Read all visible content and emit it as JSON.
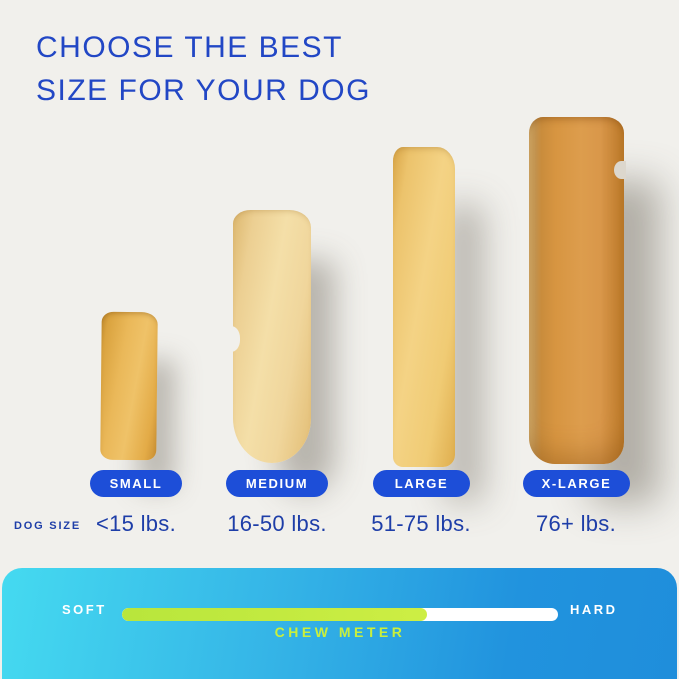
{
  "title": {
    "line1": "CHOOSE THE BEST",
    "line2": "SIZE FOR YOUR DOG"
  },
  "dog_size_label": "DOG SIZE",
  "sizes": [
    {
      "label": "SMALL",
      "weight": "<15 lbs."
    },
    {
      "label": "MEDIUM",
      "weight": "16-50 lbs."
    },
    {
      "label": "LARGE",
      "weight": "51-75 lbs."
    },
    {
      "label": "X-LARGE",
      "weight": "76+ lbs."
    }
  ],
  "chew_meter": {
    "soft_label": "SOFT",
    "hard_label": "HARD",
    "label": "CHEW METER",
    "fill_percent": 70
  },
  "colors": {
    "background": "#f1f0ec",
    "title_blue": "#2247c5",
    "pill_blue": "#1d4ed8",
    "weight_navy": "#1e3ea8",
    "panel_cyan": "#45daf0",
    "panel_blue": "#1f8edb",
    "meter_green": "#c3e83e"
  }
}
